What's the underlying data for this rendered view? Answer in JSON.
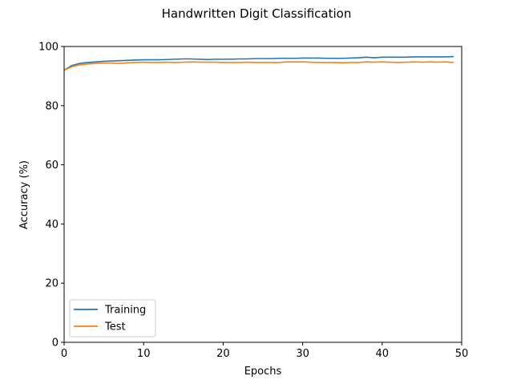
{
  "chart_data": {
    "type": "line",
    "title": "Handwritten Digit Classification",
    "xlabel": "Epochs",
    "ylabel": "Accuracy (%)",
    "xlim": [
      0,
      50
    ],
    "ylim": [
      0,
      100
    ],
    "xticks": [
      0,
      10,
      20,
      30,
      40,
      50
    ],
    "yticks": [
      0,
      20,
      40,
      60,
      80,
      100
    ],
    "grid": false,
    "legend_position": "lower-left",
    "x": [
      0,
      1,
      2,
      3,
      4,
      5,
      6,
      7,
      8,
      9,
      10,
      11,
      12,
      13,
      14,
      15,
      16,
      17,
      18,
      19,
      20,
      21,
      22,
      23,
      24,
      25,
      26,
      27,
      28,
      29,
      30,
      31,
      32,
      33,
      34,
      35,
      36,
      37,
      38,
      39,
      40,
      41,
      42,
      43,
      44,
      45,
      46,
      47,
      48,
      49
    ],
    "series": [
      {
        "name": "Training",
        "color": "#1f77b4",
        "values": [
          92.0,
          93.6,
          94.3,
          94.6,
          94.8,
          95.0,
          95.1,
          95.2,
          95.3,
          95.4,
          95.5,
          95.5,
          95.5,
          95.6,
          95.7,
          95.8,
          95.8,
          95.7,
          95.6,
          95.7,
          95.7,
          95.7,
          95.8,
          95.8,
          95.9,
          95.9,
          95.9,
          96.0,
          96.0,
          96.0,
          96.1,
          96.1,
          96.1,
          96.0,
          96.0,
          96.0,
          96.1,
          96.2,
          96.4,
          96.2,
          96.4,
          96.4,
          96.4,
          96.4,
          96.5,
          96.5,
          96.5,
          96.5,
          96.5,
          96.6
        ]
      },
      {
        "name": "Test",
        "color": "#ff7f0e",
        "values": [
          92.0,
          93.2,
          93.8,
          94.1,
          94.3,
          94.4,
          94.4,
          94.3,
          94.5,
          94.6,
          94.7,
          94.6,
          94.6,
          94.7,
          94.6,
          94.7,
          94.8,
          94.7,
          94.7,
          94.7,
          94.6,
          94.6,
          94.6,
          94.7,
          94.6,
          94.6,
          94.6,
          94.6,
          94.8,
          94.8,
          94.8,
          94.7,
          94.6,
          94.6,
          94.6,
          94.5,
          94.6,
          94.6,
          94.8,
          94.7,
          94.8,
          94.7,
          94.6,
          94.7,
          94.8,
          94.7,
          94.8,
          94.7,
          94.8,
          94.6
        ]
      }
    ]
  }
}
